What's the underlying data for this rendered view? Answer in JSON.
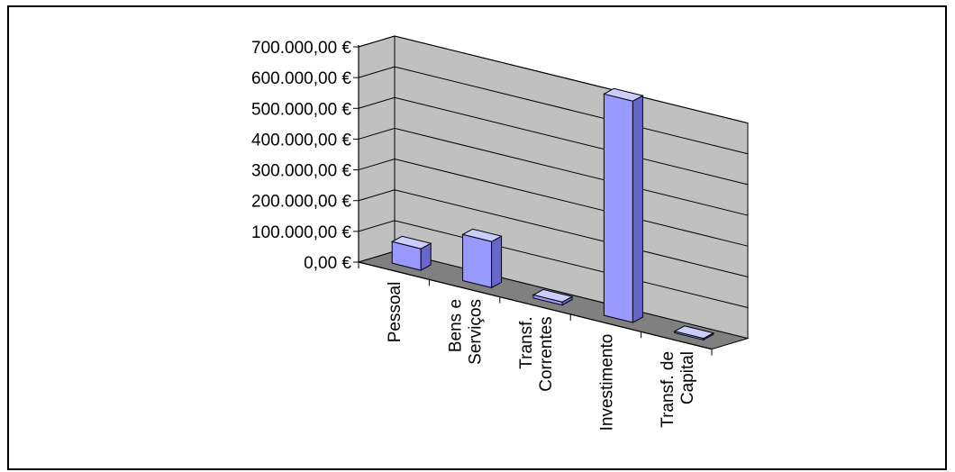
{
  "chart_data": {
    "type": "bar",
    "title": "",
    "xlabel": "",
    "ylabel": "",
    "ylim": [
      0,
      700000
    ],
    "y_ticks": [
      "0,00 €",
      "100.000,00 €",
      "200.000,00 €",
      "300.000,00 €",
      "400.000,00 €",
      "500.000,00 €",
      "600.000,00 €",
      "700.000,00 €"
    ],
    "categories": [
      [
        "Pessoal"
      ],
      [
        "Bens e",
        "Serviços"
      ],
      [
        "Transf.",
        "Correntes"
      ],
      [
        "Investimento"
      ],
      [
        "Transf. de",
        "Capital"
      ]
    ],
    "values": [
      70000,
      150000,
      10000,
      720000,
      5000
    ],
    "grid": true,
    "style": "3d-column",
    "colors": {
      "bar_front": "#9999ff",
      "bar_top": "#ccccff",
      "bar_side": "#6666cc",
      "wall": "#c0c0c0",
      "floor": "#808080"
    }
  }
}
